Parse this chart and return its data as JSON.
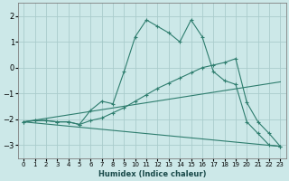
{
  "title": "",
  "xlabel": "Humidex (Indice chaleur)",
  "ylabel": "",
  "bg_color": "#cce8e8",
  "grid_color": "#aacccc",
  "line_color": "#2e7d6e",
  "xlim": [
    -0.5,
    23.5
  ],
  "ylim": [
    -3.5,
    2.5
  ],
  "xticks": [
    0,
    1,
    2,
    3,
    4,
    5,
    6,
    7,
    8,
    9,
    10,
    11,
    12,
    13,
    14,
    15,
    16,
    17,
    18,
    19,
    20,
    21,
    22,
    23
  ],
  "yticks": [
    -3,
    -2,
    -1,
    0,
    1,
    2
  ],
  "series": [
    {
      "x": [
        0,
        1,
        2,
        3,
        4,
        5,
        6,
        7,
        8,
        9,
        10,
        11,
        12,
        13,
        14,
        15,
        16,
        17,
        18,
        19,
        20,
        21,
        22,
        23
      ],
      "y": [
        -2.1,
        -2.05,
        -2.05,
        -2.1,
        -2.1,
        -2.2,
        -1.65,
        -1.3,
        -1.4,
        -0.15,
        1.2,
        1.85,
        1.6,
        1.35,
        1.0,
        1.85,
        1.2,
        -0.15,
        -0.5,
        -0.65,
        -2.1,
        -2.55,
        -3.0,
        -3.05
      ],
      "markers": true
    },
    {
      "x": [
        0,
        1,
        2,
        3,
        4,
        5,
        6,
        7,
        8,
        9,
        10,
        11,
        12,
        13,
        14,
        15,
        16,
        17,
        18,
        19,
        20,
        21,
        22,
        23
      ],
      "y": [
        -2.1,
        -2.05,
        -2.05,
        -2.1,
        -2.1,
        -2.2,
        -2.05,
        -1.95,
        -1.75,
        -1.55,
        -1.3,
        -1.05,
        -0.8,
        -0.6,
        -0.4,
        -0.2,
        0.0,
        0.1,
        0.2,
        0.35,
        -1.35,
        -2.1,
        -2.55,
        -3.05
      ],
      "markers": true
    },
    {
      "x": [
        0,
        23
      ],
      "y": [
        -2.1,
        -0.55
      ],
      "markers": false
    },
    {
      "x": [
        0,
        23
      ],
      "y": [
        -2.1,
        -3.05
      ],
      "markers": false
    }
  ]
}
